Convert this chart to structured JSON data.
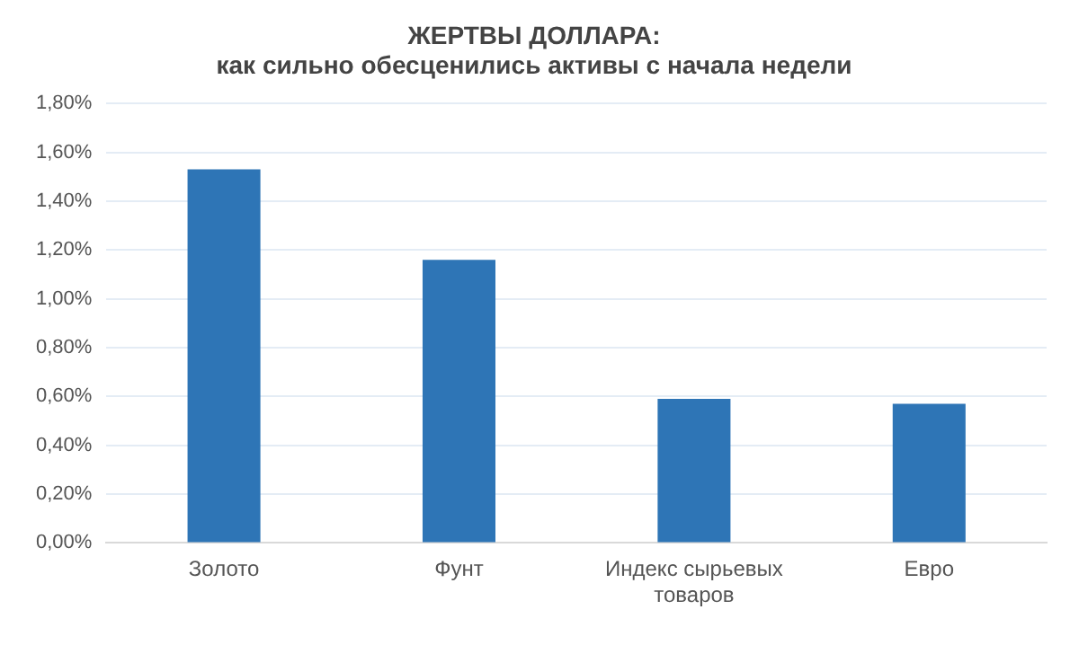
{
  "chart_data": {
    "type": "bar",
    "title": "ЖЕРТВЫ ДОЛЛАРА:",
    "subtitle": "как сильно обесценились активы с начала недели",
    "categories": [
      "Золото",
      "Фунт",
      "Индекс сырьевых товаров",
      "Евро"
    ],
    "values": [
      1.53,
      1.16,
      0.59,
      0.57
    ],
    "color": "#2e75b6",
    "ylim": [
      0,
      1.8
    ],
    "yticks": [
      {
        "value": 0,
        "label": "0,00%"
      },
      {
        "value": 0.2,
        "label": "0,20%"
      },
      {
        "value": 0.4,
        "label": "0,40%"
      },
      {
        "value": 0.6,
        "label": "0,60%"
      },
      {
        "value": 0.8,
        "label": "0,80%"
      },
      {
        "value": 1,
        "label": "1,00%"
      },
      {
        "value": 1.2,
        "label": "1,20%"
      },
      {
        "value": 1.4,
        "label": "1,40%"
      },
      {
        "value": 1.6,
        "label": "1,60%"
      },
      {
        "value": 1.8,
        "label": "1,80%"
      }
    ],
    "grid": "y"
  }
}
